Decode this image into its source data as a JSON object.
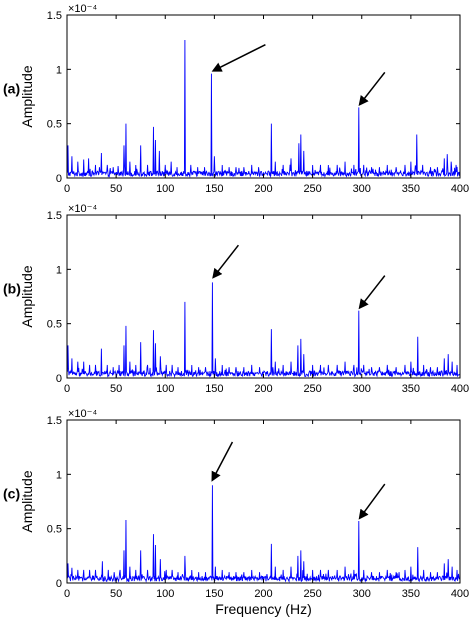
{
  "chart_data": [
    {
      "type": "line",
      "panel_label": "(a)",
      "ylabel": "Amplitude",
      "xlabel": "",
      "exponent_label": "×10⁻⁴",
      "xlim": [
        0,
        400
      ],
      "ylim": [
        0,
        1.5
      ],
      "xticks": [
        0,
        50,
        100,
        150,
        200,
        250,
        300,
        350,
        400
      ],
      "xtick_labels": [
        "0",
        "50",
        "100",
        "150",
        "200",
        "250",
        "300",
        "350",
        "400"
      ],
      "yticks": [
        0,
        0.5,
        1,
        1.5
      ],
      "ytick_labels": [
        "0",
        "0.5",
        "1",
        "1.5"
      ],
      "series_color": "#0000ff",
      "noise_level": 0.05,
      "peaks": [
        {
          "x": 1,
          "y": 0.3
        },
        {
          "x": 5,
          "y": 0.2
        },
        {
          "x": 11,
          "y": 0.15
        },
        {
          "x": 17,
          "y": 0.17
        },
        {
          "x": 22,
          "y": 0.18
        },
        {
          "x": 29,
          "y": 0.12
        },
        {
          "x": 35,
          "y": 0.23
        },
        {
          "x": 41,
          "y": 0.12
        },
        {
          "x": 47,
          "y": 0.1
        },
        {
          "x": 52,
          "y": 0.11
        },
        {
          "x": 58,
          "y": 0.3
        },
        {
          "x": 60,
          "y": 0.5
        },
        {
          "x": 64,
          "y": 0.15
        },
        {
          "x": 70,
          "y": 0.12
        },
        {
          "x": 75,
          "y": 0.3
        },
        {
          "x": 82,
          "y": 0.12
        },
        {
          "x": 88,
          "y": 0.47
        },
        {
          "x": 90,
          "y": 0.35
        },
        {
          "x": 94,
          "y": 0.25
        },
        {
          "x": 100,
          "y": 0.12
        },
        {
          "x": 106,
          "y": 0.15
        },
        {
          "x": 112,
          "y": 0.1
        },
        {
          "x": 120,
          "y": 1.27
        },
        {
          "x": 126,
          "y": 0.12
        },
        {
          "x": 133,
          "y": 0.1
        },
        {
          "x": 140,
          "y": 0.1
        },
        {
          "x": 147,
          "y": 0.96
        },
        {
          "x": 150,
          "y": 0.2
        },
        {
          "x": 158,
          "y": 0.12
        },
        {
          "x": 165,
          "y": 0.1
        },
        {
          "x": 172,
          "y": 0.1
        },
        {
          "x": 180,
          "y": 0.1
        },
        {
          "x": 188,
          "y": 0.12
        },
        {
          "x": 195,
          "y": 0.1
        },
        {
          "x": 208,
          "y": 0.5
        },
        {
          "x": 212,
          "y": 0.15
        },
        {
          "x": 220,
          "y": 0.12
        },
        {
          "x": 228,
          "y": 0.18
        },
        {
          "x": 236,
          "y": 0.32
        },
        {
          "x": 238,
          "y": 0.4
        },
        {
          "x": 241,
          "y": 0.25
        },
        {
          "x": 250,
          "y": 0.12
        },
        {
          "x": 258,
          "y": 0.12
        },
        {
          "x": 266,
          "y": 0.12
        },
        {
          "x": 275,
          "y": 0.12
        },
        {
          "x": 283,
          "y": 0.15
        },
        {
          "x": 292,
          "y": 0.12
        },
        {
          "x": 297,
          "y": 0.65
        },
        {
          "x": 302,
          "y": 0.12
        },
        {
          "x": 310,
          "y": 0.1
        },
        {
          "x": 318,
          "y": 0.1
        },
        {
          "x": 326,
          "y": 0.12
        },
        {
          "x": 335,
          "y": 0.1
        },
        {
          "x": 344,
          "y": 0.12
        },
        {
          "x": 350,
          "y": 0.15
        },
        {
          "x": 356,
          "y": 0.4
        },
        {
          "x": 362,
          "y": 0.12
        },
        {
          "x": 370,
          "y": 0.1
        },
        {
          "x": 377,
          "y": 0.1
        },
        {
          "x": 384,
          "y": 0.18
        },
        {
          "x": 387,
          "y": 0.22
        },
        {
          "x": 391,
          "y": 0.15
        },
        {
          "x": 396,
          "y": 0.12
        }
      ],
      "arrows": [
        {
          "x": 148,
          "y": 0.96
        },
        {
          "x": 297,
          "y": 0.65
        }
      ]
    },
    {
      "type": "line",
      "panel_label": "(b)",
      "ylabel": "Amplitude",
      "xlabel": "",
      "exponent_label": "×10⁻⁴",
      "xlim": [
        0,
        400
      ],
      "ylim": [
        0,
        1.5
      ],
      "xticks": [
        0,
        50,
        100,
        150,
        200,
        250,
        300,
        350,
        400
      ],
      "xtick_labels": [
        "0",
        "50",
        "100",
        "150",
        "200",
        "250",
        "300",
        "350",
        "400"
      ],
      "yticks": [
        0,
        0.5,
        1,
        1.5
      ],
      "ytick_labels": [
        "0",
        "0.5",
        "1",
        "1.5"
      ],
      "series_color": "#0000ff",
      "noise_level": 0.05,
      "peaks": [
        {
          "x": 1,
          "y": 0.3
        },
        {
          "x": 5,
          "y": 0.18
        },
        {
          "x": 11,
          "y": 0.15
        },
        {
          "x": 17,
          "y": 0.15
        },
        {
          "x": 23,
          "y": 0.12
        },
        {
          "x": 29,
          "y": 0.12
        },
        {
          "x": 35,
          "y": 0.27
        },
        {
          "x": 41,
          "y": 0.12
        },
        {
          "x": 47,
          "y": 0.1
        },
        {
          "x": 53,
          "y": 0.12
        },
        {
          "x": 58,
          "y": 0.3
        },
        {
          "x": 60,
          "y": 0.48
        },
        {
          "x": 64,
          "y": 0.15
        },
        {
          "x": 70,
          "y": 0.12
        },
        {
          "x": 75,
          "y": 0.33
        },
        {
          "x": 82,
          "y": 0.12
        },
        {
          "x": 88,
          "y": 0.44
        },
        {
          "x": 90,
          "y": 0.32
        },
        {
          "x": 95,
          "y": 0.2
        },
        {
          "x": 101,
          "y": 0.12
        },
        {
          "x": 107,
          "y": 0.12
        },
        {
          "x": 113,
          "y": 0.1
        },
        {
          "x": 120,
          "y": 0.7
        },
        {
          "x": 127,
          "y": 0.12
        },
        {
          "x": 134,
          "y": 0.1
        },
        {
          "x": 141,
          "y": 0.1
        },
        {
          "x": 148,
          "y": 0.88
        },
        {
          "x": 151,
          "y": 0.18
        },
        {
          "x": 158,
          "y": 0.12
        },
        {
          "x": 165,
          "y": 0.1
        },
        {
          "x": 172,
          "y": 0.1
        },
        {
          "x": 180,
          "y": 0.1
        },
        {
          "x": 188,
          "y": 0.12
        },
        {
          "x": 196,
          "y": 0.1
        },
        {
          "x": 208,
          "y": 0.45
        },
        {
          "x": 212,
          "y": 0.15
        },
        {
          "x": 220,
          "y": 0.12
        },
        {
          "x": 228,
          "y": 0.15
        },
        {
          "x": 235,
          "y": 0.3
        },
        {
          "x": 238,
          "y": 0.36
        },
        {
          "x": 241,
          "y": 0.22
        },
        {
          "x": 250,
          "y": 0.12
        },
        {
          "x": 258,
          "y": 0.12
        },
        {
          "x": 266,
          "y": 0.12
        },
        {
          "x": 275,
          "y": 0.12
        },
        {
          "x": 283,
          "y": 0.15
        },
        {
          "x": 292,
          "y": 0.12
        },
        {
          "x": 297,
          "y": 0.62
        },
        {
          "x": 302,
          "y": 0.12
        },
        {
          "x": 310,
          "y": 0.1
        },
        {
          "x": 318,
          "y": 0.1
        },
        {
          "x": 326,
          "y": 0.12
        },
        {
          "x": 335,
          "y": 0.1
        },
        {
          "x": 344,
          "y": 0.12
        },
        {
          "x": 350,
          "y": 0.15
        },
        {
          "x": 357,
          "y": 0.38
        },
        {
          "x": 363,
          "y": 0.12
        },
        {
          "x": 370,
          "y": 0.1
        },
        {
          "x": 377,
          "y": 0.1
        },
        {
          "x": 384,
          "y": 0.18
        },
        {
          "x": 388,
          "y": 0.22
        },
        {
          "x": 392,
          "y": 0.15
        },
        {
          "x": 397,
          "y": 0.12
        }
      ],
      "arrows": [
        {
          "x": 148,
          "y": 0.9
        },
        {
          "x": 297,
          "y": 0.62
        }
      ]
    },
    {
      "type": "line",
      "panel_label": "(c)",
      "ylabel": "Amplitude",
      "xlabel": "Frequency (Hz)",
      "exponent_label": "×10⁻⁴",
      "xlim": [
        0,
        400
      ],
      "ylim": [
        0,
        1.5
      ],
      "xticks": [
        0,
        50,
        100,
        150,
        200,
        250,
        300,
        350,
        400
      ],
      "xtick_labels": [
        "0",
        "50",
        "100",
        "150",
        "200",
        "250",
        "300",
        "350",
        "400"
      ],
      "yticks": [
        0,
        0.5,
        1,
        1.5
      ],
      "ytick_labels": [
        "0",
        "0.5",
        "1",
        "1.5"
      ],
      "series_color": "#0000ff",
      "noise_level": 0.05,
      "peaks": [
        {
          "x": 1,
          "y": 0.18
        },
        {
          "x": 5,
          "y": 0.14
        },
        {
          "x": 11,
          "y": 0.12
        },
        {
          "x": 17,
          "y": 0.12
        },
        {
          "x": 23,
          "y": 0.12
        },
        {
          "x": 29,
          "y": 0.12
        },
        {
          "x": 36,
          "y": 0.2
        },
        {
          "x": 42,
          "y": 0.12
        },
        {
          "x": 48,
          "y": 0.1
        },
        {
          "x": 54,
          "y": 0.12
        },
        {
          "x": 58,
          "y": 0.3
        },
        {
          "x": 60,
          "y": 0.58
        },
        {
          "x": 64,
          "y": 0.15
        },
        {
          "x": 70,
          "y": 0.12
        },
        {
          "x": 75,
          "y": 0.3
        },
        {
          "x": 82,
          "y": 0.12
        },
        {
          "x": 88,
          "y": 0.45
        },
        {
          "x": 90,
          "y": 0.35
        },
        {
          "x": 95,
          "y": 0.22
        },
        {
          "x": 101,
          "y": 0.12
        },
        {
          "x": 107,
          "y": 0.12
        },
        {
          "x": 113,
          "y": 0.1
        },
        {
          "x": 120,
          "y": 0.25
        },
        {
          "x": 127,
          "y": 0.12
        },
        {
          "x": 134,
          "y": 0.1
        },
        {
          "x": 141,
          "y": 0.1
        },
        {
          "x": 148,
          "y": 0.9
        },
        {
          "x": 151,
          "y": 0.15
        },
        {
          "x": 158,
          "y": 0.12
        },
        {
          "x": 165,
          "y": 0.1
        },
        {
          "x": 172,
          "y": 0.1
        },
        {
          "x": 180,
          "y": 0.1
        },
        {
          "x": 188,
          "y": 0.12
        },
        {
          "x": 196,
          "y": 0.1
        },
        {
          "x": 208,
          "y": 0.36
        },
        {
          "x": 212,
          "y": 0.15
        },
        {
          "x": 220,
          "y": 0.12
        },
        {
          "x": 228,
          "y": 0.15
        },
        {
          "x": 235,
          "y": 0.25
        },
        {
          "x": 238,
          "y": 0.3
        },
        {
          "x": 241,
          "y": 0.2
        },
        {
          "x": 250,
          "y": 0.12
        },
        {
          "x": 258,
          "y": 0.12
        },
        {
          "x": 266,
          "y": 0.12
        },
        {
          "x": 275,
          "y": 0.12
        },
        {
          "x": 283,
          "y": 0.15
        },
        {
          "x": 292,
          "y": 0.12
        },
        {
          "x": 297,
          "y": 0.57
        },
        {
          "x": 302,
          "y": 0.12
        },
        {
          "x": 310,
          "y": 0.1
        },
        {
          "x": 318,
          "y": 0.1
        },
        {
          "x": 326,
          "y": 0.12
        },
        {
          "x": 335,
          "y": 0.1
        },
        {
          "x": 344,
          "y": 0.12
        },
        {
          "x": 350,
          "y": 0.15
        },
        {
          "x": 357,
          "y": 0.33
        },
        {
          "x": 363,
          "y": 0.12
        },
        {
          "x": 370,
          "y": 0.1
        },
        {
          "x": 377,
          "y": 0.1
        },
        {
          "x": 384,
          "y": 0.18
        },
        {
          "x": 388,
          "y": 0.22
        },
        {
          "x": 392,
          "y": 0.15
        },
        {
          "x": 397,
          "y": 0.12
        }
      ],
      "arrows": [
        {
          "x": 147,
          "y": 0.92
        },
        {
          "x": 297,
          "y": 0.57
        }
      ]
    }
  ]
}
